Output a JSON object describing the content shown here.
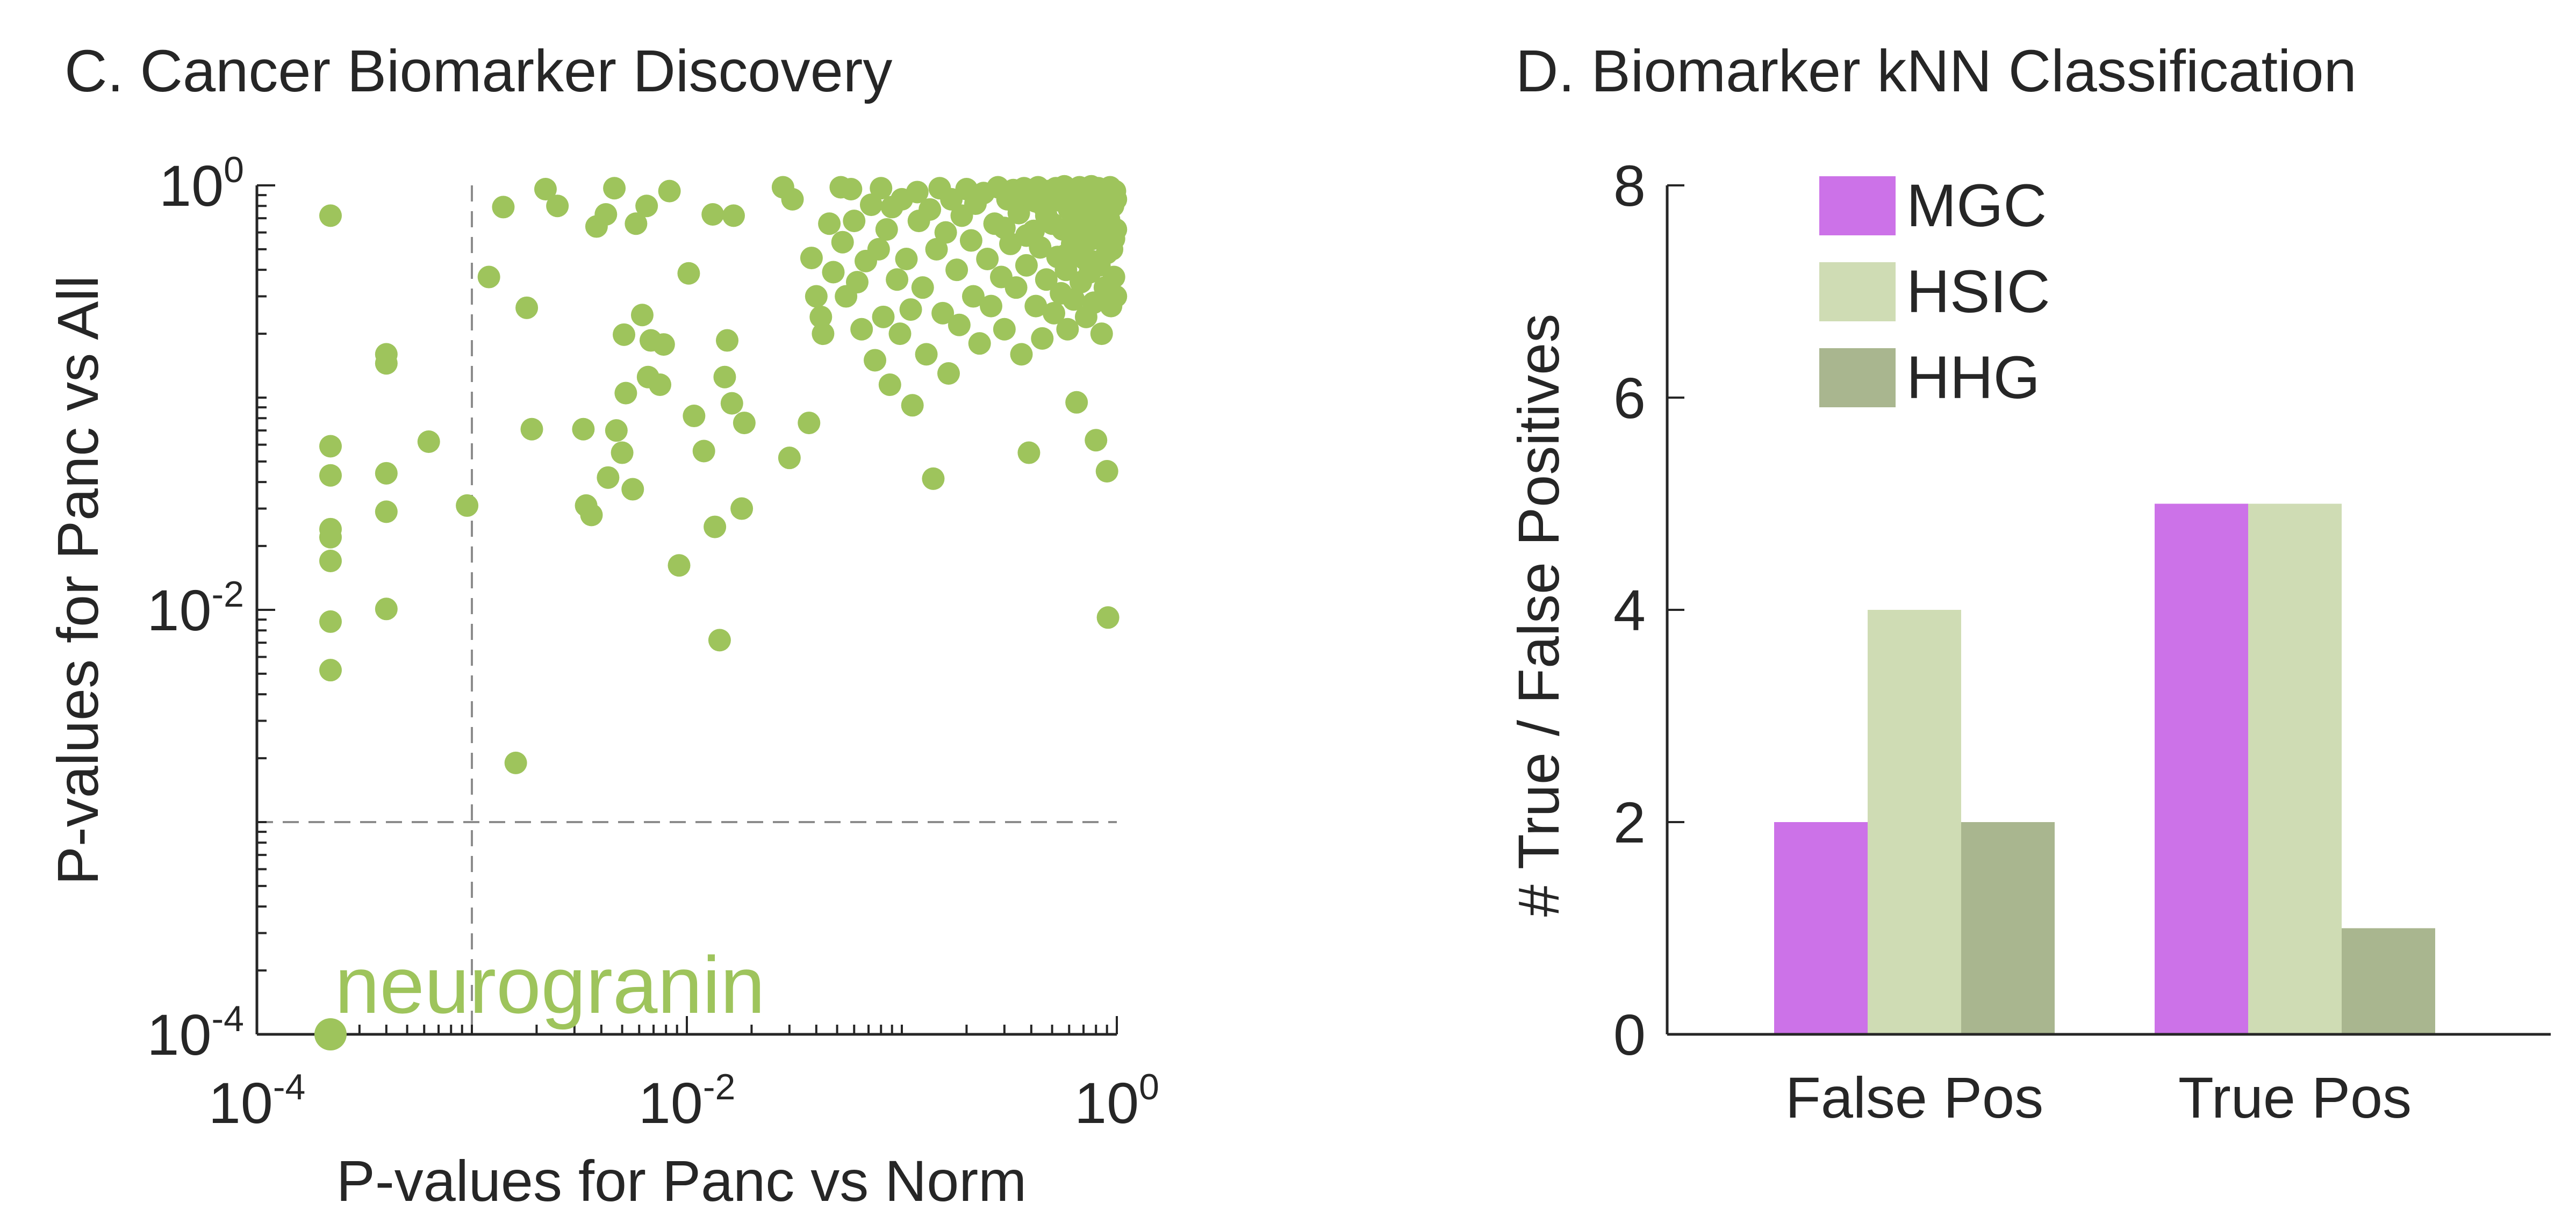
{
  "chart_data": [
    {
      "type": "scatter",
      "title": "C. Cancer Biomarker Discovery",
      "xlabel": "P-values for Panc vs Norm",
      "ylabel": "P-values for Panc vs All",
      "xscale": "log",
      "yscale": "log",
      "xlim": [
        0.0001,
        1
      ],
      "ylim": [
        0.0001,
        1
      ],
      "x_ticks": [
        {
          "value": 0.0001,
          "base": "10",
          "exp": "-4"
        },
        {
          "value": 0.01,
          "base": "10",
          "exp": "-2"
        },
        {
          "value": 1,
          "base": "10",
          "exp": "0"
        }
      ],
      "y_ticks": [
        {
          "value": 0.0001,
          "base": "10",
          "exp": "-4"
        },
        {
          "value": 0.01,
          "base": "10",
          "exp": "-2"
        },
        {
          "value": 1,
          "base": "10",
          "exp": "0"
        }
      ],
      "threshold_lines": {
        "x": 0.001,
        "y": 0.001
      },
      "grid": false,
      "point_color": "#9ec45c",
      "guide_color": "#8c8c8c",
      "highlight": {
        "label": "neurogranin",
        "x": 0.00022,
        "y": 0.0001
      },
      "points": [
        [
          0.00022,
          0.72
        ],
        [
          0.00022,
          0.059
        ],
        [
          0.00022,
          0.043
        ],
        [
          0.00022,
          0.024
        ],
        [
          0.00022,
          0.022
        ],
        [
          0.00022,
          0.017
        ],
        [
          0.00022,
          0.0088
        ],
        [
          0.00022,
          0.0052
        ],
        [
          0.0004,
          0.16
        ],
        [
          0.0004,
          0.145
        ],
        [
          0.0004,
          0.044
        ],
        [
          0.0004,
          0.029
        ],
        [
          0.0004,
          0.0101
        ],
        [
          0.00063,
          0.062
        ],
        [
          0.00095,
          0.031
        ],
        [
          0.0012,
          0.37
        ],
        [
          0.0014,
          0.79
        ],
        [
          0.0016,
          0.0019
        ],
        [
          0.0018,
          0.265
        ],
        [
          0.0019,
          0.071
        ],
        [
          0.0022,
          0.96
        ],
        [
          0.0025,
          0.8
        ],
        [
          0.0033,
          0.071
        ],
        [
          0.0034,
          0.031
        ],
        [
          0.0036,
          0.028
        ],
        [
          0.0038,
          0.64
        ],
        [
          0.0042,
          0.73
        ],
        [
          0.0043,
          0.042
        ],
        [
          0.0046,
          0.97
        ],
        [
          0.0047,
          0.07
        ],
        [
          0.005,
          0.055
        ],
        [
          0.0051,
          0.198
        ],
        [
          0.0052,
          0.105
        ],
        [
          0.0056,
          0.037
        ],
        [
          0.0058,
          0.66
        ],
        [
          0.0062,
          0.245
        ],
        [
          0.0065,
          0.8
        ],
        [
          0.0066,
          0.125
        ],
        [
          0.0068,
          0.186
        ],
        [
          0.0075,
          0.115
        ],
        [
          0.0078,
          0.178
        ],
        [
          0.0083,
          0.94
        ],
        [
          0.0092,
          0.0162
        ],
        [
          0.0102,
          0.385
        ],
        [
          0.0108,
          0.082
        ],
        [
          0.012,
          0.056
        ],
        [
          0.0132,
          0.73
        ],
        [
          0.0135,
          0.0246
        ],
        [
          0.0142,
          0.0072
        ],
        [
          0.015,
          0.125
        ],
        [
          0.0154,
          0.186
        ],
        [
          0.0162,
          0.094
        ],
        [
          0.0165,
          0.72
        ],
        [
          0.018,
          0.03
        ],
        [
          0.0185,
          0.076
        ],
        [
          0.028,
          0.98
        ],
        [
          0.03,
          0.052
        ],
        [
          0.031,
          0.86
        ],
        [
          0.037,
          0.076
        ],
        [
          0.038,
          0.455
        ],
        [
          0.04,
          0.3
        ],
        [
          0.042,
          0.24
        ],
        [
          0.043,
          0.2
        ],
        [
          0.046,
          0.66
        ],
        [
          0.048,
          0.39
        ],
        [
          0.052,
          0.98
        ],
        [
          0.053,
          0.54
        ],
        [
          0.055,
          0.3
        ],
        [
          0.058,
          0.96
        ],
        [
          0.06,
          0.68
        ],
        [
          0.062,
          0.35
        ],
        [
          0.065,
          0.21
        ],
        [
          0.068,
          0.44
        ],
        [
          0.072,
          0.81
        ],
        [
          0.075,
          0.15
        ],
        [
          0.078,
          0.5
        ],
        [
          0.08,
          0.97
        ],
        [
          0.082,
          0.24
        ],
        [
          0.085,
          0.62
        ],
        [
          0.088,
          0.115
        ],
        [
          0.09,
          0.79
        ],
        [
          0.095,
          0.36
        ],
        [
          0.098,
          0.2
        ],
        [
          0.1,
          0.86
        ],
        [
          0.105,
          0.45
        ],
        [
          0.11,
          0.26
        ],
        [
          0.112,
          0.092
        ],
        [
          0.118,
          0.93
        ],
        [
          0.12,
          0.68
        ],
        [
          0.125,
          0.33
        ],
        [
          0.13,
          0.16
        ],
        [
          0.135,
          0.77
        ],
        [
          0.14,
          0.0415
        ],
        [
          0.145,
          0.5
        ],
        [
          0.15,
          0.97
        ],
        [
          0.155,
          0.25
        ],
        [
          0.16,
          0.6
        ],
        [
          0.165,
          0.13
        ],
        [
          0.17,
          0.86
        ],
        [
          0.18,
          0.4
        ],
        [
          0.185,
          0.22
        ],
        [
          0.19,
          0.72
        ],
        [
          0.2,
          0.96
        ],
        [
          0.21,
          0.55
        ],
        [
          0.215,
          0.3
        ],
        [
          0.22,
          0.82
        ],
        [
          0.23,
          0.18
        ],
        [
          0.24,
          0.92
        ],
        [
          0.25,
          0.45
        ],
        [
          0.26,
          0.27
        ],
        [
          0.27,
          0.66
        ],
        [
          0.28,
          0.98
        ],
        [
          0.29,
          0.37
        ],
        [
          0.3,
          0.21
        ],
        [
          0.31,
          0.86
        ],
        [
          0.32,
          0.53
        ],
        [
          0.33,
          0.95
        ],
        [
          0.34,
          0.33
        ],
        [
          0.35,
          0.74
        ],
        [
          0.36,
          0.16
        ],
        [
          0.37,
          0.97
        ],
        [
          0.38,
          0.42
        ],
        [
          0.39,
          0.055
        ],
        [
          0.4,
          0.88
        ],
        [
          0.41,
          0.61
        ],
        [
          0.42,
          0.27
        ],
        [
          0.43,
          0.98
        ],
        [
          0.44,
          0.51
        ],
        [
          0.45,
          0.19
        ],
        [
          0.46,
          0.79
        ],
        [
          0.47,
          0.36
        ],
        [
          0.48,
          0.94
        ],
        [
          0.5,
          0.66
        ],
        [
          0.51,
          0.25
        ],
        [
          0.52,
          0.97
        ],
        [
          0.53,
          0.46
        ],
        [
          0.54,
          0.85
        ],
        [
          0.55,
          0.31
        ],
        [
          0.56,
          0.62
        ],
        [
          0.57,
          0.99
        ],
        [
          0.58,
          0.4
        ],
        [
          0.59,
          0.21
        ],
        [
          0.6,
          0.77
        ],
        [
          0.61,
          0.93
        ],
        [
          0.62,
          0.53
        ],
        [
          0.63,
          0.29
        ],
        [
          0.64,
          0.88
        ],
        [
          0.65,
          0.095
        ],
        [
          0.66,
          0.69
        ],
        [
          0.67,
          0.98
        ],
        [
          0.68,
          0.35
        ],
        [
          0.69,
          0.59
        ],
        [
          0.7,
          0.87
        ],
        [
          0.71,
          0.45
        ],
        [
          0.72,
          0.24
        ],
        [
          0.73,
          0.95
        ],
        [
          0.74,
          0.72
        ],
        [
          0.75,
          0.39
        ],
        [
          0.76,
          0.99
        ],
        [
          0.77,
          0.56
        ],
        [
          0.78,
          0.28
        ],
        [
          0.79,
          0.83
        ],
        [
          0.8,
          0.063
        ],
        [
          0.81,
          0.64
        ],
        [
          0.82,
          0.97
        ],
        [
          0.83,
          0.42
        ],
        [
          0.84,
          0.76
        ],
        [
          0.85,
          0.2
        ],
        [
          0.86,
          0.92
        ],
        [
          0.87,
          0.55
        ],
        [
          0.88,
          0.33
        ],
        [
          0.89,
          0.86
        ],
        [
          0.9,
          0.045
        ],
        [
          0.91,
          0.0092
        ],
        [
          0.92,
          0.69
        ],
        [
          0.93,
          0.98
        ],
        [
          0.94,
          0.27
        ],
        [
          0.95,
          0.5
        ],
        [
          0.96,
          0.8
        ],
        [
          0.97,
          0.37
        ],
        [
          0.98,
          0.94
        ],
        [
          0.99,
          0.62
        ],
        [
          0.35,
          0.9
        ],
        [
          0.42,
          0.84
        ],
        [
          0.55,
          0.93
        ],
        [
          0.62,
          0.8
        ],
        [
          0.68,
          0.9
        ],
        [
          0.74,
          0.84
        ],
        [
          0.82,
          0.9
        ],
        [
          0.88,
          0.78
        ],
        [
          0.94,
          0.88
        ],
        [
          0.99,
          0.86
        ],
        [
          0.3,
          0.63
        ],
        [
          0.38,
          0.58
        ],
        [
          0.47,
          0.72
        ],
        [
          0.58,
          0.47
        ],
        [
          0.66,
          0.49
        ],
        [
          0.76,
          0.44
        ],
        [
          0.84,
          0.58
        ],
        [
          0.9,
          0.48
        ],
        [
          0.97,
          0.56
        ],
        [
          0.99,
          0.3
        ]
      ]
    },
    {
      "type": "bar",
      "title": "D. Biomarker kNN Classification",
      "xlabel": "",
      "ylabel": "# True / False Positives",
      "categories": [
        "False Pos",
        "True Pos"
      ],
      "ylim": [
        0,
        8
      ],
      "yticks": [
        "0",
        "2",
        "4",
        "6",
        "8"
      ],
      "legend_position": "top-left",
      "grid": false,
      "series": [
        {
          "name": "MGC",
          "values": [
            2,
            5
          ],
          "color": "#cc72e8"
        },
        {
          "name": "HSIC",
          "values": [
            4,
            5
          ],
          "color": "#cfdcb4"
        },
        {
          "name": "HHG",
          "values": [
            2,
            1
          ],
          "color": "#a9b68f"
        }
      ]
    }
  ]
}
